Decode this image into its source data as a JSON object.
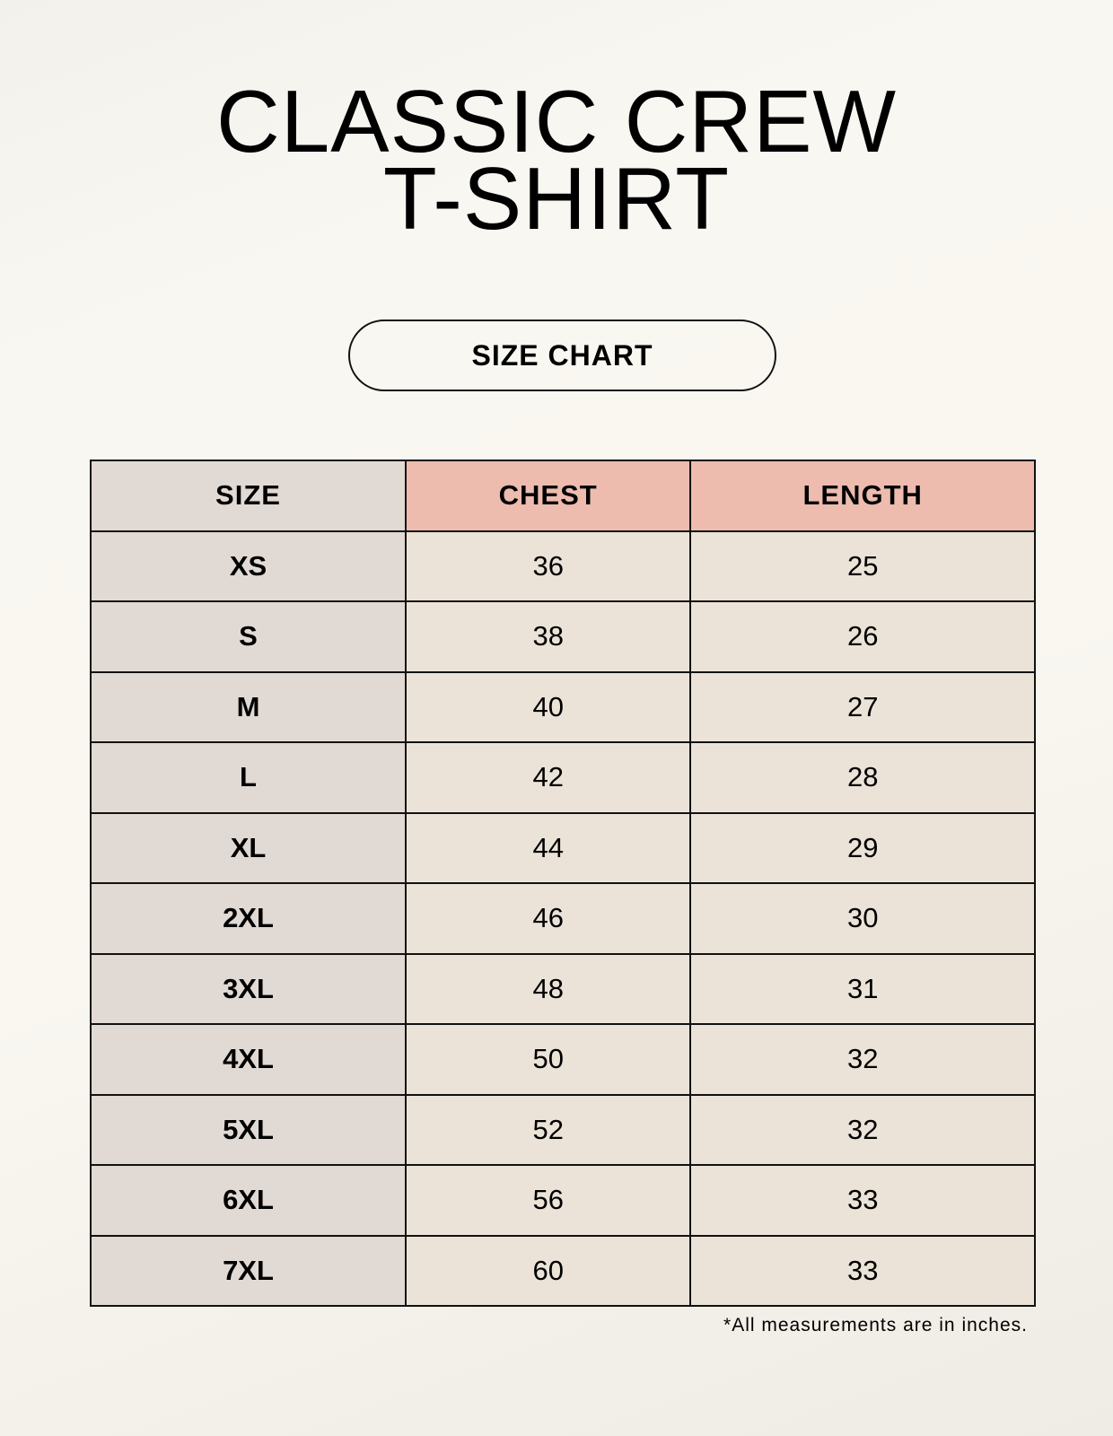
{
  "title": {
    "line1": "CLASSIC CREW",
    "line2": "T-SHIRT"
  },
  "badge": "SIZE CHART",
  "table": {
    "headers": [
      "SIZE",
      "CHEST",
      "LENGTH"
    ],
    "rows": [
      [
        "XS",
        "36",
        "25"
      ],
      [
        "S",
        "38",
        "26"
      ],
      [
        "M",
        "40",
        "27"
      ],
      [
        "L",
        "42",
        "28"
      ],
      [
        "XL",
        "44",
        "29"
      ],
      [
        "2XL",
        "46",
        "30"
      ],
      [
        "3XL",
        "48",
        "31"
      ],
      [
        "4XL",
        "50",
        "32"
      ],
      [
        "5XL",
        "52",
        "32"
      ],
      [
        "6XL",
        "56",
        "33"
      ],
      [
        "7XL",
        "60",
        "33"
      ]
    ]
  },
  "footnote": "*All measurements are in inches.",
  "colors": {
    "size_column": "#e1d9d3",
    "header_accent": "#edbcae",
    "cell": "#ebe3d8"
  }
}
